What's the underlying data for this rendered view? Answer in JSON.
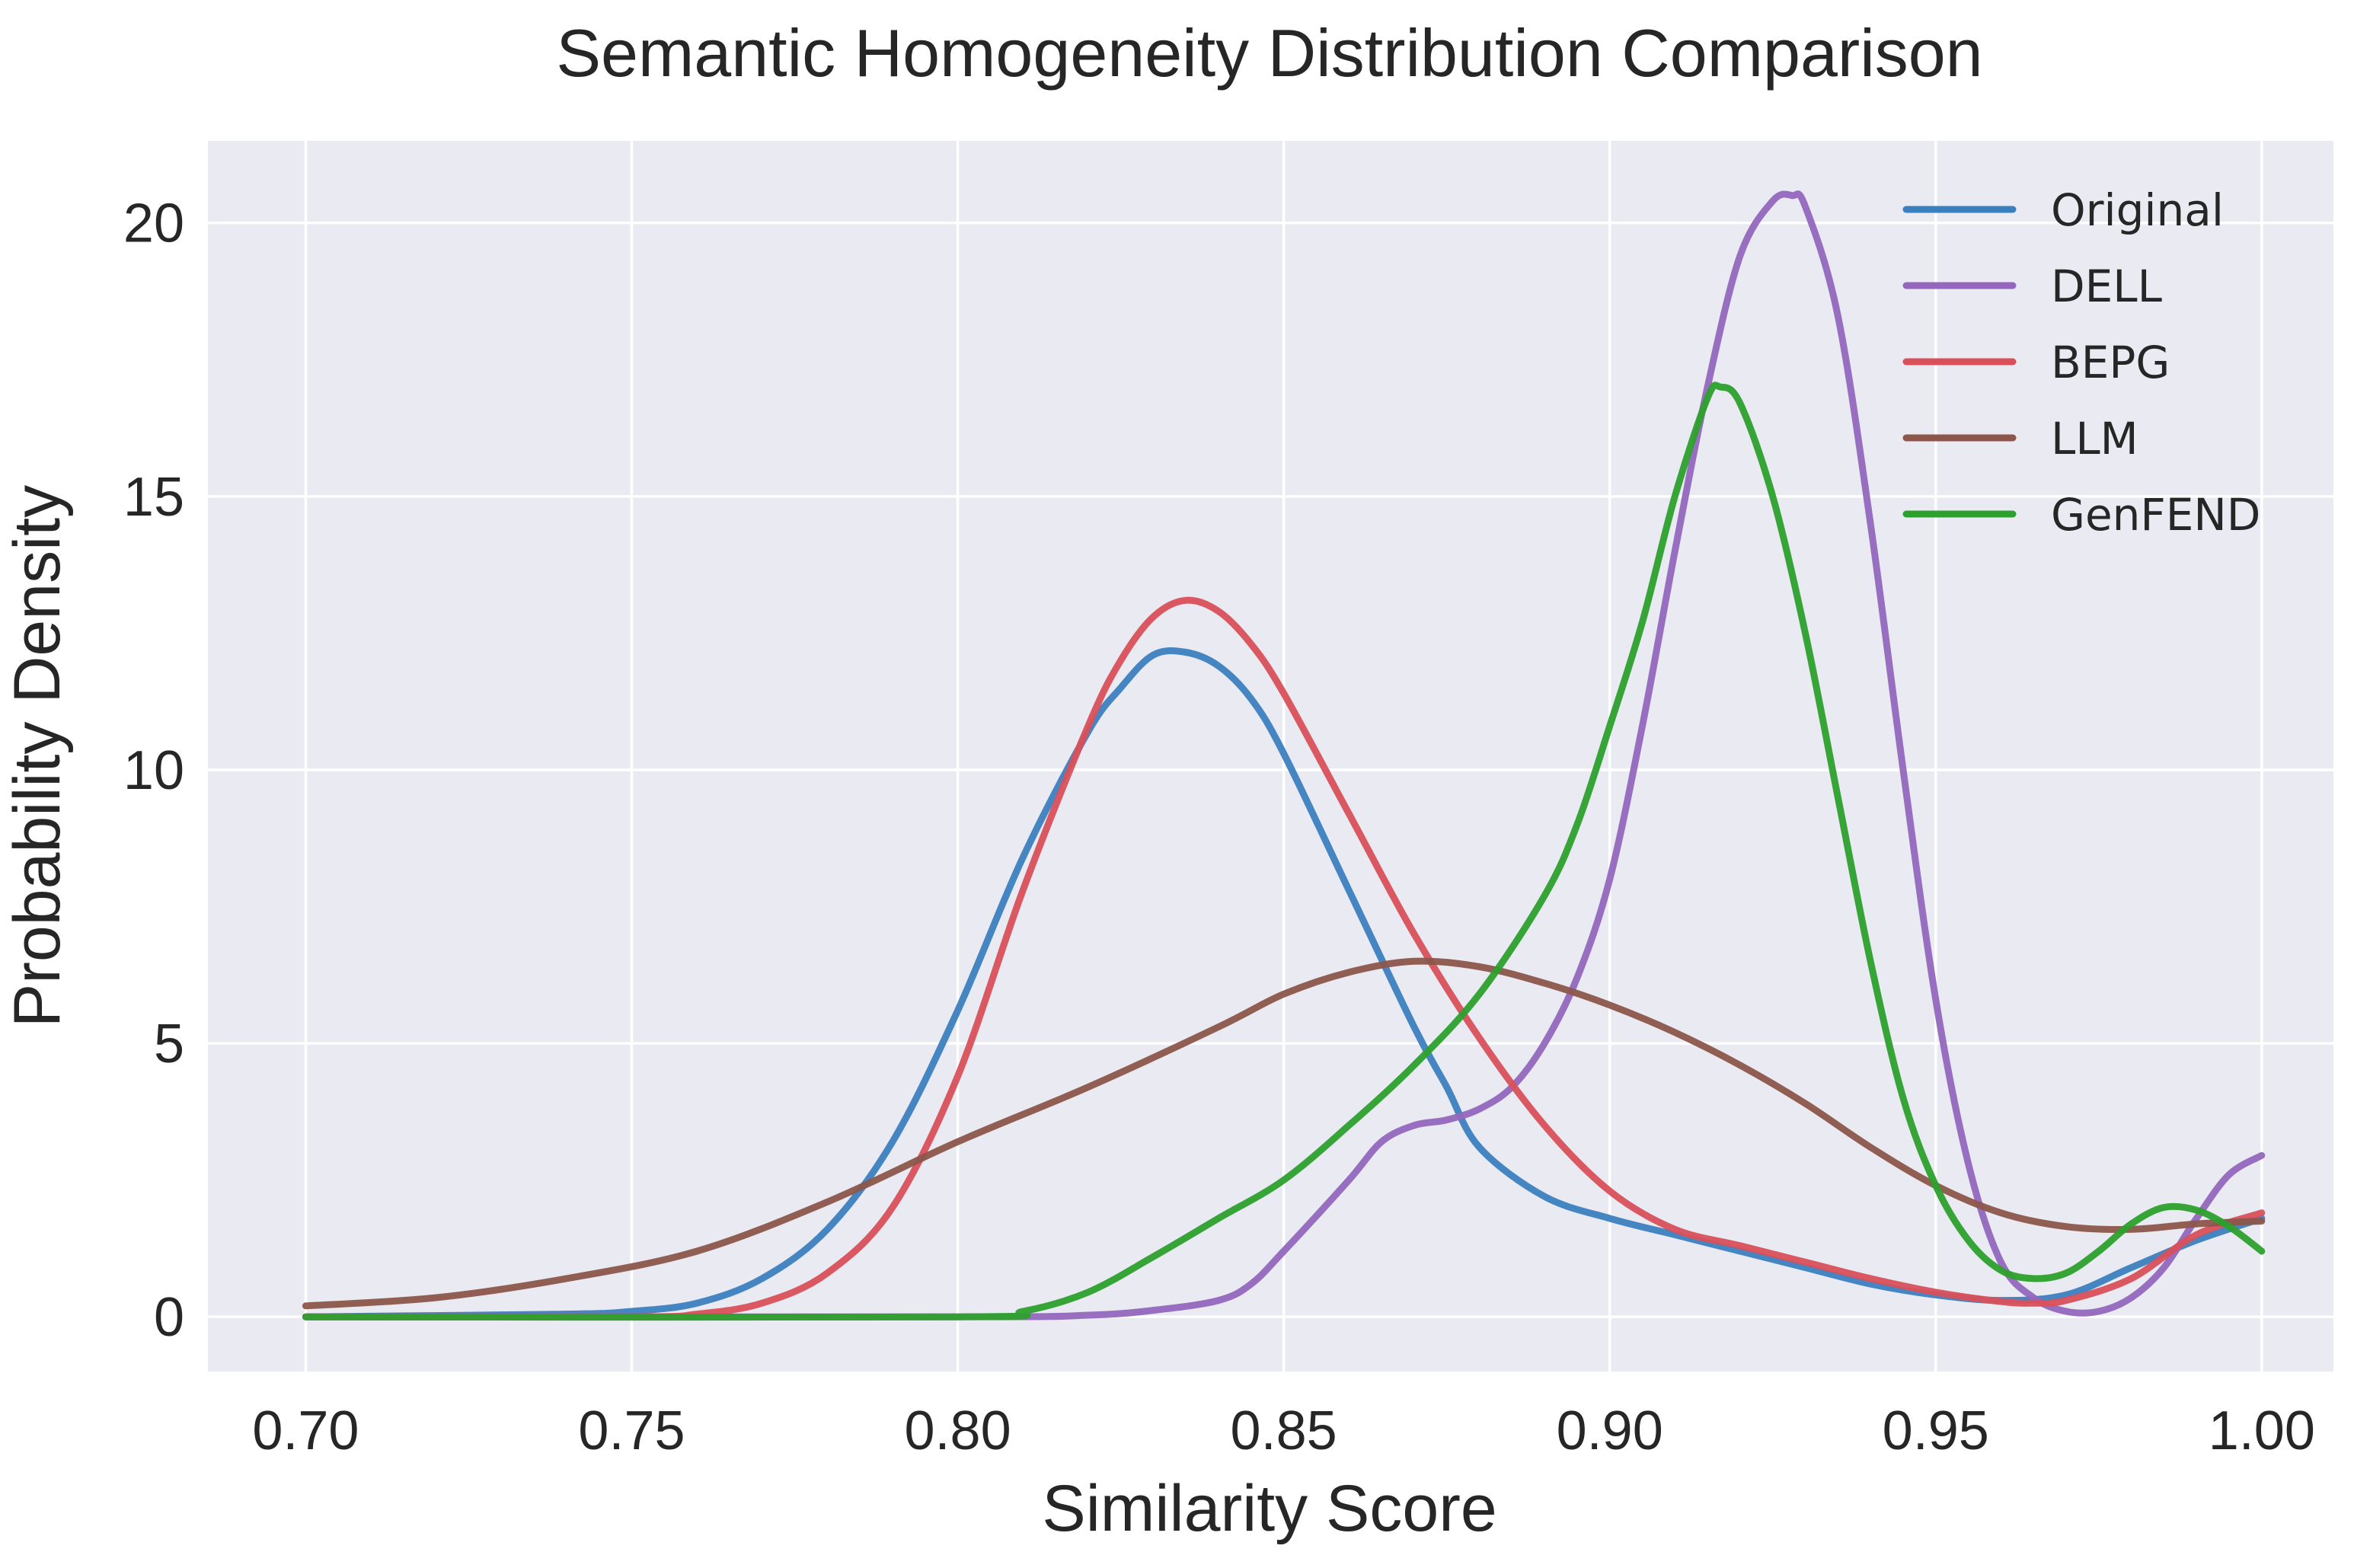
{
  "chart_data": {
    "type": "line",
    "title": "Semantic Homogeneity Distribution Comparison",
    "xlabel": "Similarity Score",
    "ylabel": "Probability Density",
    "xlim": [
      0.685,
      1.011
    ],
    "ylim": [
      -1.0,
      21.5
    ],
    "xticks": [
      0.7,
      0.75,
      0.8,
      0.85,
      0.9,
      0.95,
      1.0
    ],
    "xtick_labels": [
      "0.70",
      "0.75",
      "0.80",
      "0.85",
      "0.90",
      "0.95",
      "1.00"
    ],
    "yticks": [
      0,
      5,
      10,
      15,
      20
    ],
    "ytick_labels": [
      "0",
      "5",
      "10",
      "15",
      "20"
    ],
    "grid": true,
    "legend_position": "top-right",
    "series": [
      {
        "name": "Original",
        "color": "#3b7fbf",
        "points": [
          [
            0.7,
            0
          ],
          [
            0.74,
            0.05
          ],
          [
            0.75,
            0.1
          ],
          [
            0.76,
            0.25
          ],
          [
            0.77,
            0.7
          ],
          [
            0.78,
            1.6
          ],
          [
            0.79,
            3.2
          ],
          [
            0.8,
            5.6
          ],
          [
            0.81,
            8.4
          ],
          [
            0.82,
            10.7
          ],
          [
            0.825,
            11.5
          ],
          [
            0.83,
            12.1
          ],
          [
            0.835,
            12.15
          ],
          [
            0.84,
            11.9
          ],
          [
            0.845,
            11.3
          ],
          [
            0.85,
            10.3
          ],
          [
            0.86,
            7.8
          ],
          [
            0.87,
            5.3
          ],
          [
            0.875,
            4.2
          ],
          [
            0.88,
            3.1
          ],
          [
            0.89,
            2.2
          ],
          [
            0.9,
            1.8
          ],
          [
            0.91,
            1.5
          ],
          [
            0.92,
            1.2
          ],
          [
            0.93,
            0.9
          ],
          [
            0.94,
            0.6
          ],
          [
            0.95,
            0.4
          ],
          [
            0.96,
            0.3
          ],
          [
            0.97,
            0.4
          ],
          [
            0.98,
            0.9
          ],
          [
            0.99,
            1.4
          ],
          [
            1.0,
            1.8
          ]
        ]
      },
      {
        "name": "DELL",
        "color": "#9467bd",
        "points": [
          [
            0.7,
            0
          ],
          [
            0.8,
            0
          ],
          [
            0.82,
            0.03
          ],
          [
            0.83,
            0.12
          ],
          [
            0.84,
            0.3
          ],
          [
            0.845,
            0.6
          ],
          [
            0.85,
            1.2
          ],
          [
            0.86,
            2.5
          ],
          [
            0.865,
            3.2
          ],
          [
            0.87,
            3.5
          ],
          [
            0.875,
            3.6
          ],
          [
            0.88,
            3.8
          ],
          [
            0.885,
            4.2
          ],
          [
            0.89,
            5.0
          ],
          [
            0.895,
            6.2
          ],
          [
            0.9,
            8.0
          ],
          [
            0.905,
            10.8
          ],
          [
            0.91,
            14.0
          ],
          [
            0.915,
            17.0
          ],
          [
            0.92,
            19.4
          ],
          [
            0.925,
            20.4
          ],
          [
            0.928,
            20.5
          ],
          [
            0.93,
            20.3
          ],
          [
            0.935,
            18.3
          ],
          [
            0.94,
            14.5
          ],
          [
            0.945,
            10.0
          ],
          [
            0.95,
            5.8
          ],
          [
            0.955,
            2.8
          ],
          [
            0.96,
            1.0
          ],
          [
            0.965,
            0.35
          ],
          [
            0.97,
            0.1
          ],
          [
            0.975,
            0.1
          ],
          [
            0.98,
            0.35
          ],
          [
            0.985,
            0.9
          ],
          [
            0.99,
            1.8
          ],
          [
            0.995,
            2.6
          ],
          [
            1.0,
            2.95
          ]
        ]
      },
      {
        "name": "BEPG",
        "color": "#d9505a",
        "points": [
          [
            0.7,
            0
          ],
          [
            0.75,
            0
          ],
          [
            0.76,
            0.05
          ],
          [
            0.77,
            0.25
          ],
          [
            0.78,
            0.8
          ],
          [
            0.79,
            2.0
          ],
          [
            0.8,
            4.4
          ],
          [
            0.81,
            7.8
          ],
          [
            0.82,
            10.8
          ],
          [
            0.825,
            12.0
          ],
          [
            0.83,
            12.8
          ],
          [
            0.835,
            13.1
          ],
          [
            0.84,
            12.9
          ],
          [
            0.845,
            12.3
          ],
          [
            0.85,
            11.4
          ],
          [
            0.86,
            9.2
          ],
          [
            0.87,
            7.0
          ],
          [
            0.88,
            5.1
          ],
          [
            0.89,
            3.5
          ],
          [
            0.9,
            2.3
          ],
          [
            0.91,
            1.6
          ],
          [
            0.92,
            1.3
          ],
          [
            0.93,
            1.0
          ],
          [
            0.94,
            0.7
          ],
          [
            0.95,
            0.45
          ],
          [
            0.96,
            0.28
          ],
          [
            0.965,
            0.25
          ],
          [
            0.97,
            0.3
          ],
          [
            0.98,
            0.7
          ],
          [
            0.99,
            1.5
          ],
          [
            1.0,
            1.9
          ]
        ]
      },
      {
        "name": "LLM",
        "color": "#8c564b",
        "points": [
          [
            0.7,
            0.2
          ],
          [
            0.72,
            0.35
          ],
          [
            0.74,
            0.7
          ],
          [
            0.76,
            1.2
          ],
          [
            0.78,
            2.1
          ],
          [
            0.8,
            3.2
          ],
          [
            0.82,
            4.2
          ],
          [
            0.84,
            5.3
          ],
          [
            0.85,
            5.9
          ],
          [
            0.86,
            6.3
          ],
          [
            0.87,
            6.5
          ],
          [
            0.88,
            6.4
          ],
          [
            0.89,
            6.1
          ],
          [
            0.9,
            5.7
          ],
          [
            0.91,
            5.2
          ],
          [
            0.92,
            4.6
          ],
          [
            0.93,
            3.9
          ],
          [
            0.94,
            3.1
          ],
          [
            0.95,
            2.4
          ],
          [
            0.96,
            1.9
          ],
          [
            0.97,
            1.65
          ],
          [
            0.98,
            1.6
          ],
          [
            0.99,
            1.7
          ],
          [
            1.0,
            1.75
          ]
        ]
      },
      {
        "name": "GenFEND",
        "color": "#2ca02c",
        "points": [
          [
            0.7,
            0
          ],
          [
            0.8,
            0
          ],
          [
            0.81,
            0.1
          ],
          [
            0.82,
            0.45
          ],
          [
            0.83,
            1.1
          ],
          [
            0.84,
            1.8
          ],
          [
            0.85,
            2.5
          ],
          [
            0.86,
            3.5
          ],
          [
            0.87,
            4.6
          ],
          [
            0.88,
            5.9
          ],
          [
            0.89,
            7.7
          ],
          [
            0.895,
            9.0
          ],
          [
            0.9,
            10.8
          ],
          [
            0.905,
            12.7
          ],
          [
            0.91,
            15.0
          ],
          [
            0.915,
            16.8
          ],
          [
            0.917,
            17.0
          ],
          [
            0.92,
            16.7
          ],
          [
            0.925,
            15.0
          ],
          [
            0.93,
            12.5
          ],
          [
            0.935,
            9.5
          ],
          [
            0.94,
            6.5
          ],
          [
            0.945,
            4.0
          ],
          [
            0.95,
            2.4
          ],
          [
            0.955,
            1.4
          ],
          [
            0.96,
            0.85
          ],
          [
            0.965,
            0.7
          ],
          [
            0.97,
            0.8
          ],
          [
            0.975,
            1.2
          ],
          [
            0.98,
            1.7
          ],
          [
            0.985,
            2.0
          ],
          [
            0.99,
            1.95
          ],
          [
            0.995,
            1.65
          ],
          [
            1.0,
            1.2
          ]
        ]
      }
    ]
  }
}
